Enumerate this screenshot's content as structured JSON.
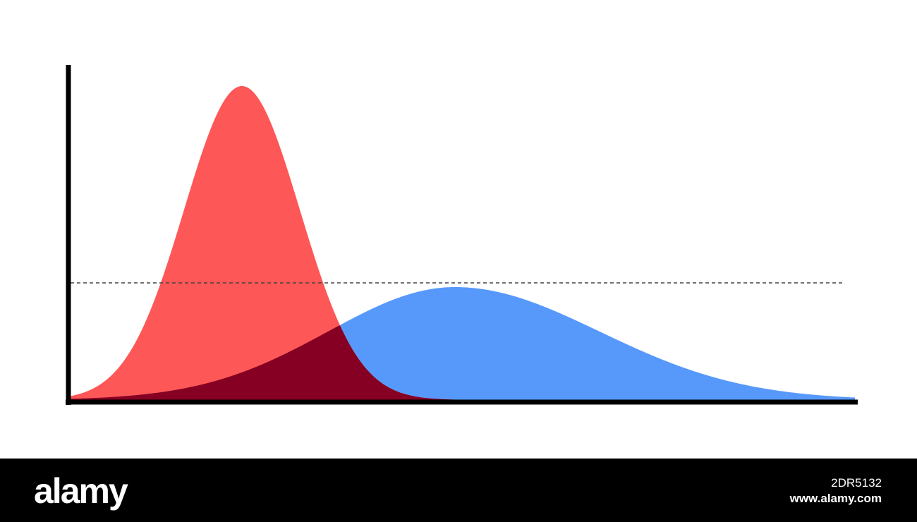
{
  "watermark": {
    "logo": "alamy",
    "image_id": "2DR5132",
    "url": "www.alamy.com"
  }
}
